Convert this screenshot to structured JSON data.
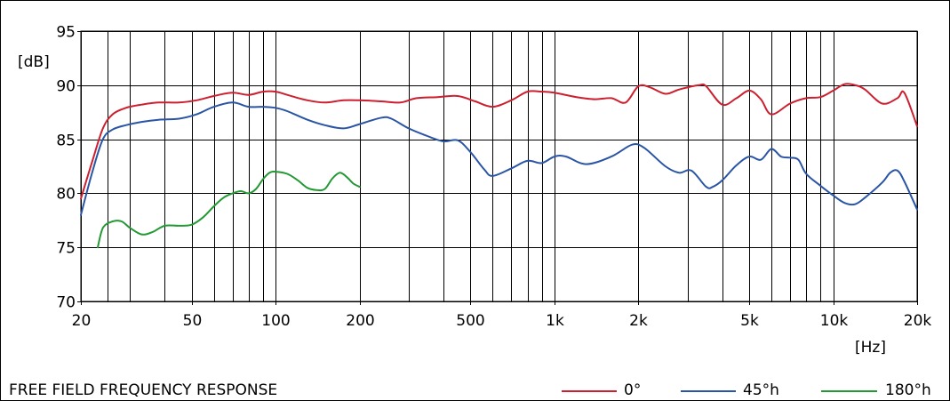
{
  "chart_data": {
    "type": "line",
    "title": "FREE FIELD FREQUENCY RESPONSE",
    "ylabel": "[dB]",
    "xlabel": "[Hz]",
    "x_scale": "log",
    "xlim": [
      20,
      20000
    ],
    "ylim": [
      70,
      95
    ],
    "grid": true,
    "legend_position": "bottom-right",
    "y_ticks": [
      {
        "value": 70,
        "label": "70"
      },
      {
        "value": 75,
        "label": "75"
      },
      {
        "value": 80,
        "label": "80"
      },
      {
        "value": 85,
        "label": "85"
      },
      {
        "value": 90,
        "label": "90"
      },
      {
        "value": 95,
        "label": "95"
      }
    ],
    "x_ticks": [
      {
        "value": 20,
        "label": "20"
      },
      {
        "value": 50,
        "label": "50"
      },
      {
        "value": 100,
        "label": "100"
      },
      {
        "value": 200,
        "label": "200"
      },
      {
        "value": 500,
        "label": "500"
      },
      {
        "value": 1000,
        "label": "1k"
      },
      {
        "value": 2000,
        "label": "2k"
      },
      {
        "value": 5000,
        "label": "5k"
      },
      {
        "value": 10000,
        "label": "10k"
      },
      {
        "value": 20000,
        "label": "20k"
      }
    ],
    "x_grid": [
      20,
      25,
      30,
      40,
      50,
      60,
      70,
      80,
      90,
      100,
      200,
      300,
      400,
      500,
      600,
      700,
      800,
      900,
      1000,
      2000,
      3000,
      4000,
      5000,
      6000,
      7000,
      8000,
      9000,
      10000,
      20000
    ],
    "series": [
      {
        "name": "0°",
        "color": "#cc1f2f",
        "points": [
          [
            20,
            79.5
          ],
          [
            22,
            83
          ],
          [
            24,
            86
          ],
          [
            26,
            87.3
          ],
          [
            29,
            87.9
          ],
          [
            33,
            88.2
          ],
          [
            38,
            88.4
          ],
          [
            45,
            88.4
          ],
          [
            52,
            88.6
          ],
          [
            60,
            89
          ],
          [
            70,
            89.3
          ],
          [
            80,
            89.1
          ],
          [
            90,
            89.4
          ],
          [
            100,
            89.4
          ],
          [
            110,
            89.1
          ],
          [
            130,
            88.6
          ],
          [
            150,
            88.4
          ],
          [
            175,
            88.6
          ],
          [
            200,
            88.6
          ],
          [
            240,
            88.5
          ],
          [
            280,
            88.4
          ],
          [
            320,
            88.8
          ],
          [
            380,
            88.9
          ],
          [
            450,
            89
          ],
          [
            520,
            88.5
          ],
          [
            600,
            88
          ],
          [
            700,
            88.6
          ],
          [
            800,
            89.4
          ],
          [
            900,
            89.4
          ],
          [
            1000,
            89.3
          ],
          [
            1200,
            88.9
          ],
          [
            1400,
            88.7
          ],
          [
            1600,
            88.8
          ],
          [
            1800,
            88.4
          ],
          [
            2000,
            89.9
          ],
          [
            2200,
            89.8
          ],
          [
            2500,
            89.2
          ],
          [
            2800,
            89.6
          ],
          [
            3300,
            90
          ],
          [
            3500,
            89.9
          ],
          [
            4000,
            88.2
          ],
          [
            4500,
            88.8
          ],
          [
            5000,
            89.5
          ],
          [
            5500,
            88.7
          ],
          [
            6000,
            87.3
          ],
          [
            7000,
            88.3
          ],
          [
            8000,
            88.8
          ],
          [
            9000,
            88.9
          ],
          [
            10000,
            89.5
          ],
          [
            11000,
            90.1
          ],
          [
            12000,
            90
          ],
          [
            13000,
            89.6
          ],
          [
            15000,
            88.3
          ],
          [
            17000,
            88.8
          ],
          [
            18000,
            89.3
          ],
          [
            20000,
            86.2
          ]
        ]
      },
      {
        "name": "45°h",
        "color": "#2a55a5",
        "points": [
          [
            20,
            78
          ],
          [
            22,
            82
          ],
          [
            24,
            85
          ],
          [
            26,
            85.9
          ],
          [
            29,
            86.3
          ],
          [
            33,
            86.6
          ],
          [
            38,
            86.8
          ],
          [
            45,
            86.9
          ],
          [
            52,
            87.3
          ],
          [
            60,
            88
          ],
          [
            70,
            88.4
          ],
          [
            80,
            88
          ],
          [
            90,
            88
          ],
          [
            100,
            87.9
          ],
          [
            110,
            87.6
          ],
          [
            130,
            86.8
          ],
          [
            150,
            86.3
          ],
          [
            175,
            86
          ],
          [
            200,
            86.4
          ],
          [
            240,
            87
          ],
          [
            260,
            86.9
          ],
          [
            300,
            86
          ],
          [
            350,
            85.3
          ],
          [
            400,
            84.8
          ],
          [
            450,
            84.9
          ],
          [
            500,
            83.8
          ],
          [
            560,
            82.2
          ],
          [
            600,
            81.6
          ],
          [
            700,
            82.3
          ],
          [
            800,
            83
          ],
          [
            900,
            82.8
          ],
          [
            1000,
            83.4
          ],
          [
            1100,
            83.4
          ],
          [
            1300,
            82.7
          ],
          [
            1600,
            83.4
          ],
          [
            1900,
            84.5
          ],
          [
            2100,
            84.2
          ],
          [
            2500,
            82.5
          ],
          [
            2800,
            81.9
          ],
          [
            3100,
            82.1
          ],
          [
            3500,
            80.6
          ],
          [
            3700,
            80.6
          ],
          [
            4000,
            81.2
          ],
          [
            4500,
            82.6
          ],
          [
            5000,
            83.4
          ],
          [
            5500,
            83.1
          ],
          [
            6000,
            84.1
          ],
          [
            6500,
            83.4
          ],
          [
            7000,
            83.3
          ],
          [
            7500,
            83.1
          ],
          [
            8000,
            81.8
          ],
          [
            9000,
            80.7
          ],
          [
            10000,
            79.8
          ],
          [
            11000,
            79.1
          ],
          [
            12000,
            79
          ],
          [
            13000,
            79.6
          ],
          [
            15000,
            81
          ],
          [
            16000,
            81.9
          ],
          [
            17000,
            82.1
          ],
          [
            18000,
            81.1
          ],
          [
            20000,
            78.5
          ]
        ]
      },
      {
        "name": "180°h",
        "color": "#229933",
        "points": [
          [
            23,
            75
          ],
          [
            24,
            76.8
          ],
          [
            26,
            77.4
          ],
          [
            28,
            77.4
          ],
          [
            30,
            76.8
          ],
          [
            33,
            76.2
          ],
          [
            36,
            76.4
          ],
          [
            40,
            77
          ],
          [
            45,
            77
          ],
          [
            50,
            77.1
          ],
          [
            55,
            77.8
          ],
          [
            60,
            78.8
          ],
          [
            65,
            79.6
          ],
          [
            70,
            80
          ],
          [
            75,
            80.2
          ],
          [
            80,
            80
          ],
          [
            85,
            80.4
          ],
          [
            90,
            81.3
          ],
          [
            95,
            81.9
          ],
          [
            100,
            82
          ],
          [
            110,
            81.8
          ],
          [
            120,
            81.2
          ],
          [
            130,
            80.5
          ],
          [
            140,
            80.3
          ],
          [
            150,
            80.4
          ],
          [
            160,
            81.4
          ],
          [
            170,
            81.9
          ],
          [
            180,
            81.5
          ],
          [
            190,
            80.9
          ],
          [
            200,
            80.6
          ]
        ]
      }
    ]
  }
}
